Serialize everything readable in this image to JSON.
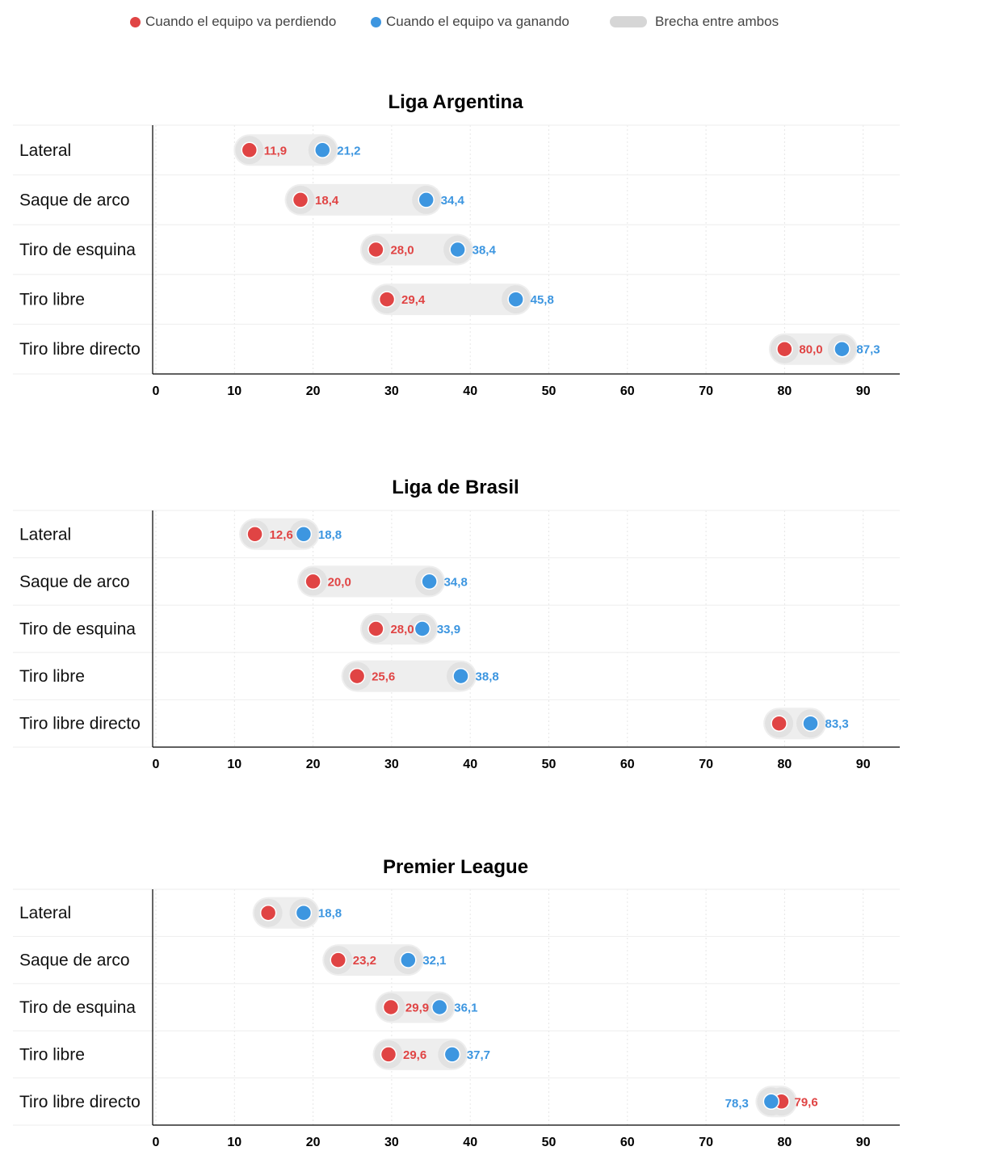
{
  "legend": {
    "losing": "Cuando el equipo va perdiendo",
    "winning": "Cuando el equipo va ganando",
    "gap": "Brecha entre ambos"
  },
  "colors": {
    "losing": "#e04444",
    "winning": "#3d96e0",
    "gap": "#eeeeee",
    "gap_shadow": "#e2e2e2"
  },
  "chart_data": [
    {
      "type": "dumbbell",
      "title": "Liga Argentina",
      "xlim": [
        0,
        95
      ],
      "xticks": [
        0,
        10,
        20,
        30,
        40,
        50,
        60,
        70,
        80,
        90
      ],
      "grid": true,
      "categories": [
        "Lateral",
        "Saque de arco",
        "Tiro de esquina",
        "Tiro libre",
        "Tiro libre directo"
      ],
      "series": [
        {
          "name": "Cuando el equipo va perdiendo",
          "values": [
            11.9,
            18.4,
            28.0,
            29.4,
            80.0
          ],
          "labels": [
            "11,9",
            "18,4",
            "28,0",
            "29,4",
            "80,0"
          ]
        },
        {
          "name": "Cuando el equipo va ganando",
          "values": [
            21.2,
            34.4,
            38.4,
            45.8,
            87.3
          ],
          "labels": [
            "21,2",
            "34,4",
            "38,4",
            "45,8",
            "87,3"
          ]
        }
      ]
    },
    {
      "type": "dumbbell",
      "title": "Liga de Brasil",
      "xlim": [
        0,
        95
      ],
      "xticks": [
        0,
        10,
        20,
        30,
        40,
        50,
        60,
        70,
        80,
        90
      ],
      "grid": true,
      "categories": [
        "Lateral",
        "Saque de arco",
        "Tiro de esquina",
        "Tiro libre",
        "Tiro libre directo"
      ],
      "series": [
        {
          "name": "Cuando el equipo va perdiendo",
          "values": [
            12.6,
            20.0,
            28.0,
            25.6,
            79.3
          ],
          "labels": [
            "12,6",
            "20,0",
            "28,0",
            "25,6",
            ""
          ]
        },
        {
          "name": "Cuando el equipo va ganando",
          "values": [
            18.8,
            34.8,
            33.9,
            38.8,
            83.3
          ],
          "labels": [
            "18,8",
            "34,8",
            "33,9",
            "38,8",
            "83,3"
          ]
        }
      ]
    },
    {
      "type": "dumbbell",
      "title": "Premier League",
      "xlim": [
        0,
        95
      ],
      "xticks": [
        0,
        10,
        20,
        30,
        40,
        50,
        60,
        70,
        80,
        90
      ],
      "grid": true,
      "categories": [
        "Lateral",
        "Saque de arco",
        "Tiro de esquina",
        "Tiro libre",
        "Tiro libre directo"
      ],
      "series": [
        {
          "name": "Cuando el equipo va perdiendo",
          "values": [
            14.3,
            23.2,
            29.9,
            29.6,
            79.6
          ],
          "labels": [
            "",
            "23,2",
            "29,9",
            "29,6",
            "79,6"
          ]
        },
        {
          "name": "Cuando el equipo va ganando",
          "values": [
            18.8,
            32.1,
            36.1,
            37.7,
            78.3
          ],
          "labels": [
            "18,8",
            "32,1",
            "36,1",
            "37,7",
            "78,3"
          ]
        }
      ]
    }
  ]
}
